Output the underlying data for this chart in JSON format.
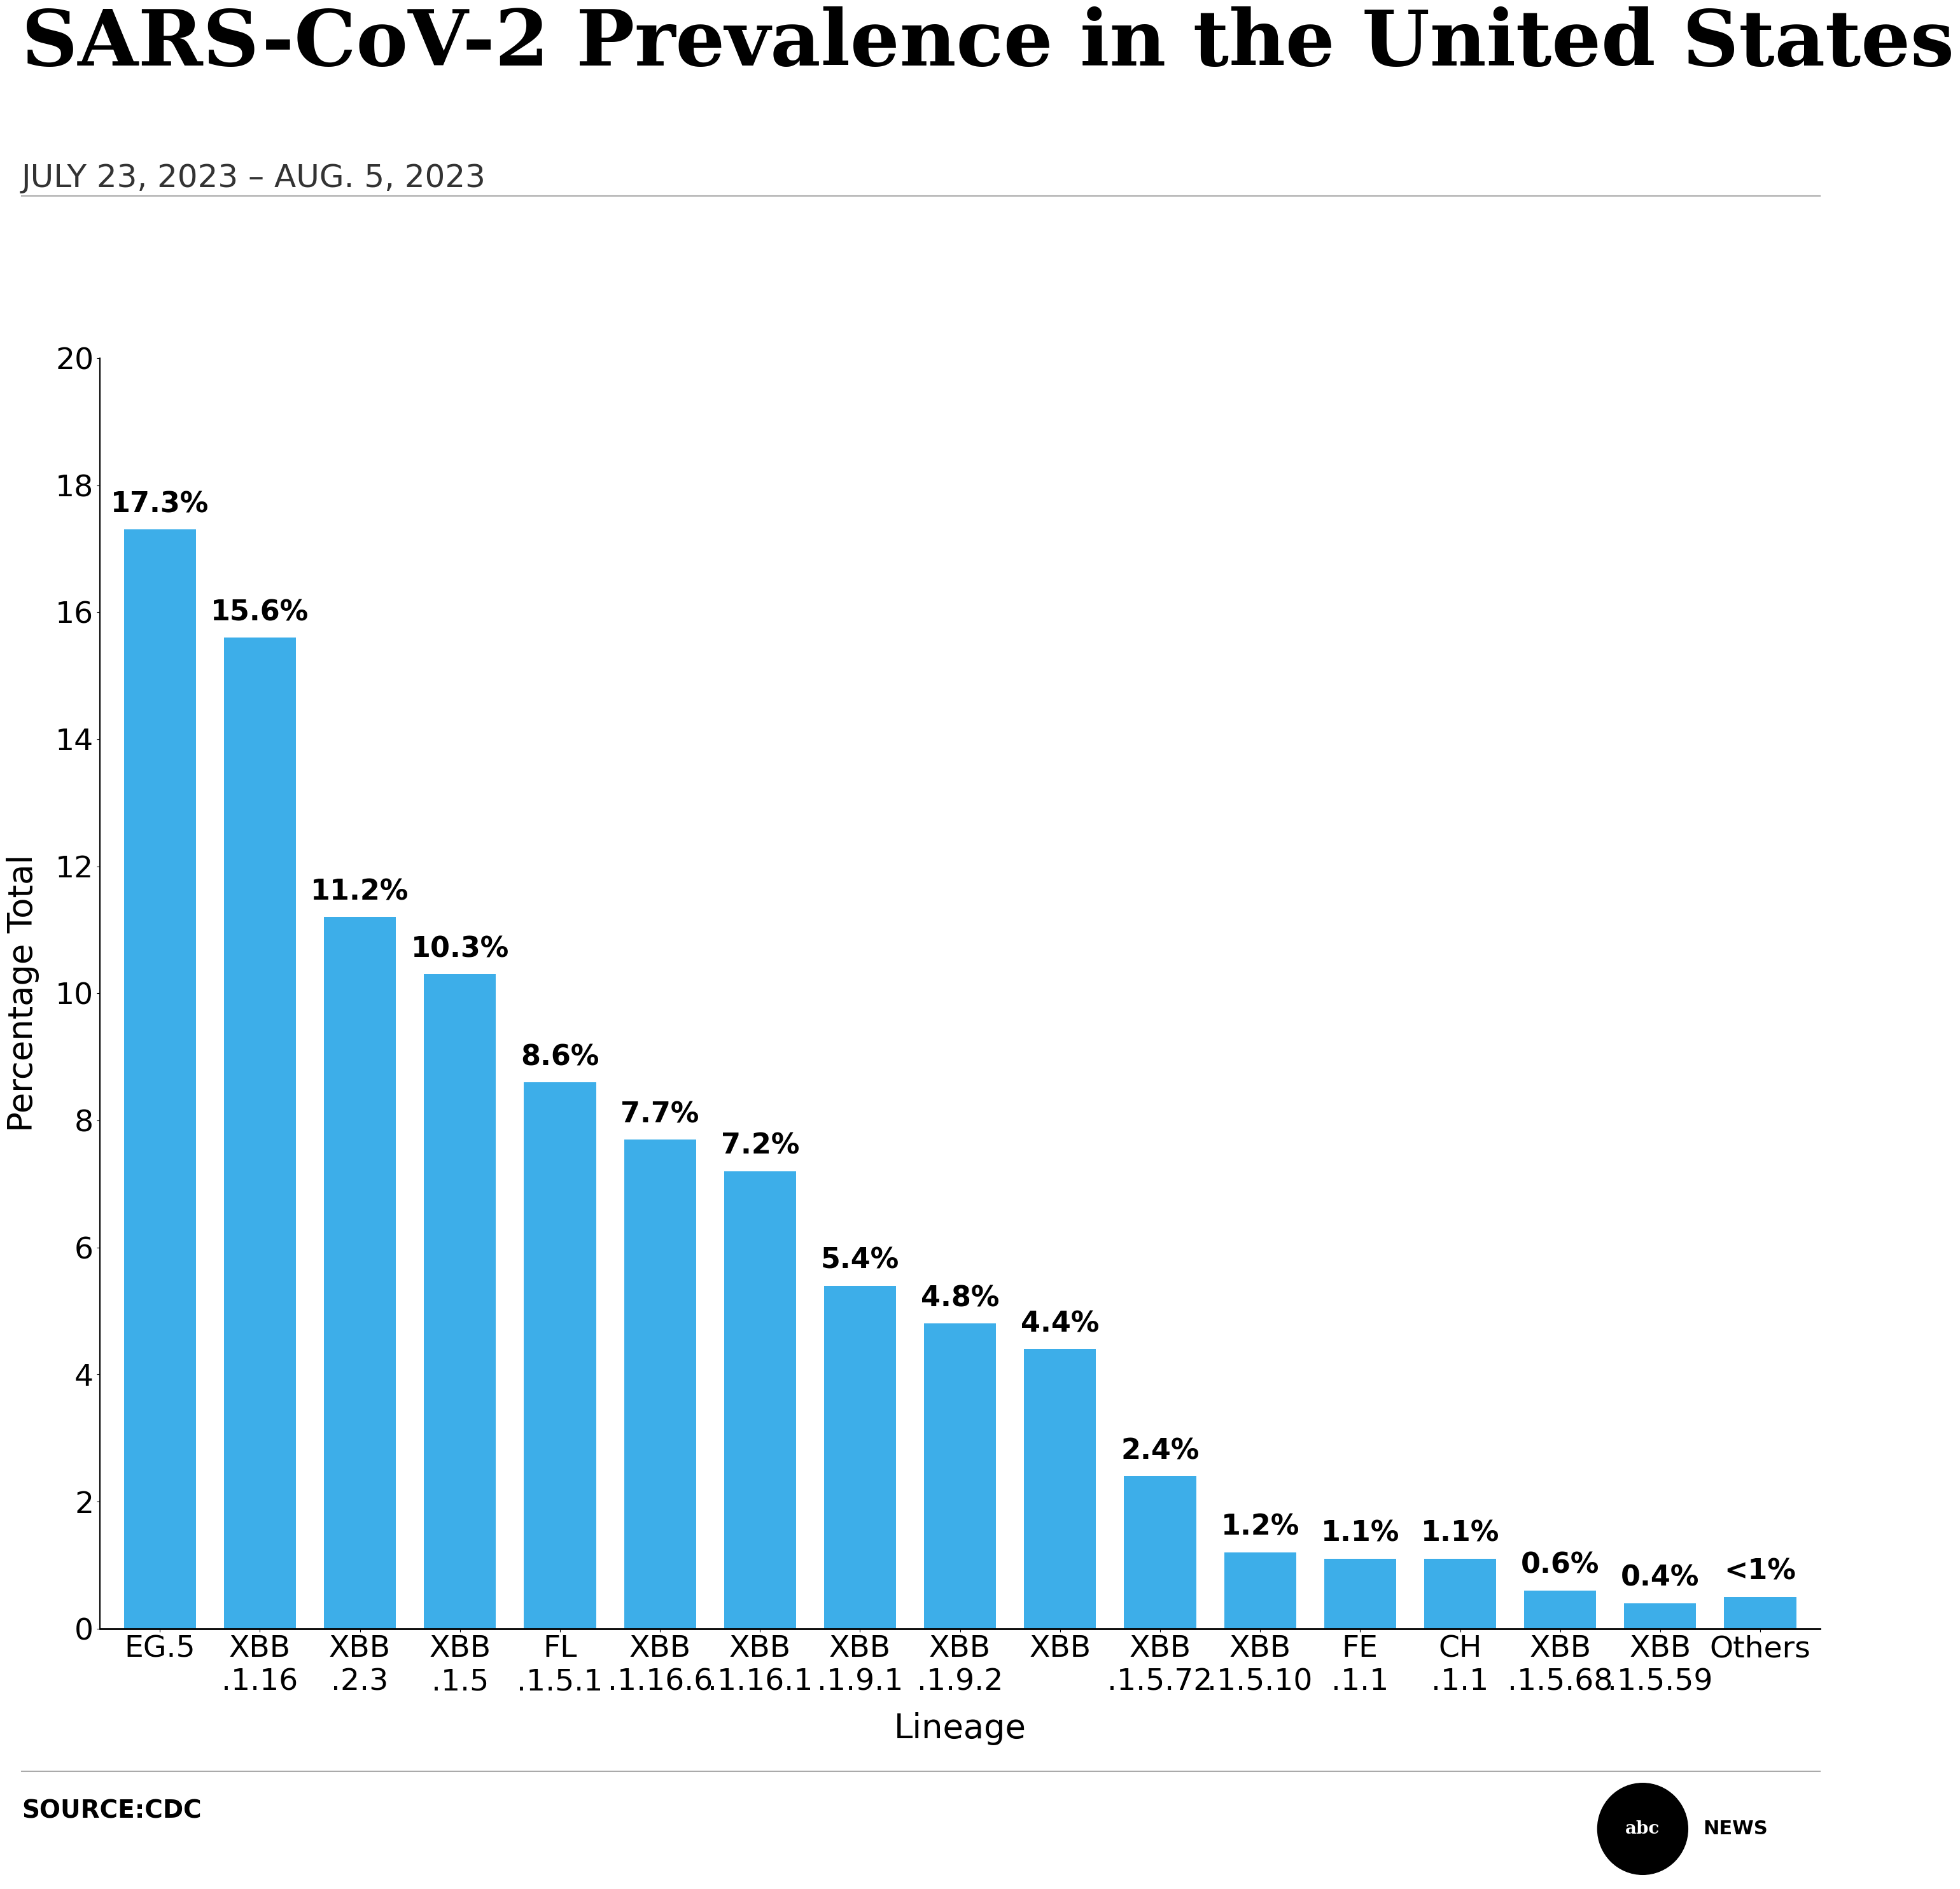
{
  "title": "SARS-CoV-2 Prevalence in the United States",
  "subtitle": "JULY 23, 2023 – AUG. 5, 2023",
  "xlabel": "Lineage",
  "ylabel": "Percentage Total",
  "source": "SOURCE:CDC",
  "categories": [
    "EG.5",
    "XBB\n.1.16",
    "XBB\n.2.3",
    "XBB\n.1.5",
    "FL\n.1.5.1",
    "XBB\n.1.16.6",
    "XBB\n.1.16.1",
    "XBB\n.1.9.1",
    "XBB\n.1.9.2",
    "XBB",
    "XBB\n.1.5.72",
    "XBB\n.1.5.10",
    "FE\n.1.1",
    "CH\n.1.1",
    "XBB\n.1.5.68",
    "XBB\n.1.5.59",
    "Others"
  ],
  "values": [
    17.3,
    15.6,
    11.2,
    10.3,
    8.6,
    7.7,
    7.2,
    5.4,
    4.8,
    4.4,
    2.4,
    1.2,
    1.1,
    1.1,
    0.6,
    0.4,
    0.5
  ],
  "labels": [
    "17.3%",
    "15.6%",
    "11.2%",
    "10.3%",
    "8.6%",
    "7.7%",
    "7.2%",
    "5.4%",
    "4.8%",
    "4.4%",
    "2.4%",
    "1.2%",
    "1.1%",
    "1.1%",
    "0.6%",
    "0.4%",
    "<1%"
  ],
  "bar_color": "#3daee9",
  "ylim": [
    0,
    20
  ],
  "yticks": [
    0,
    2,
    4,
    6,
    8,
    10,
    12,
    14,
    16,
    18,
    20
  ],
  "background_color": "#ffffff",
  "title_fontsize": 88,
  "subtitle_fontsize": 36,
  "axis_label_fontsize": 38,
  "tick_fontsize": 34,
  "bar_label_fontsize": 32,
  "source_fontsize": 28
}
